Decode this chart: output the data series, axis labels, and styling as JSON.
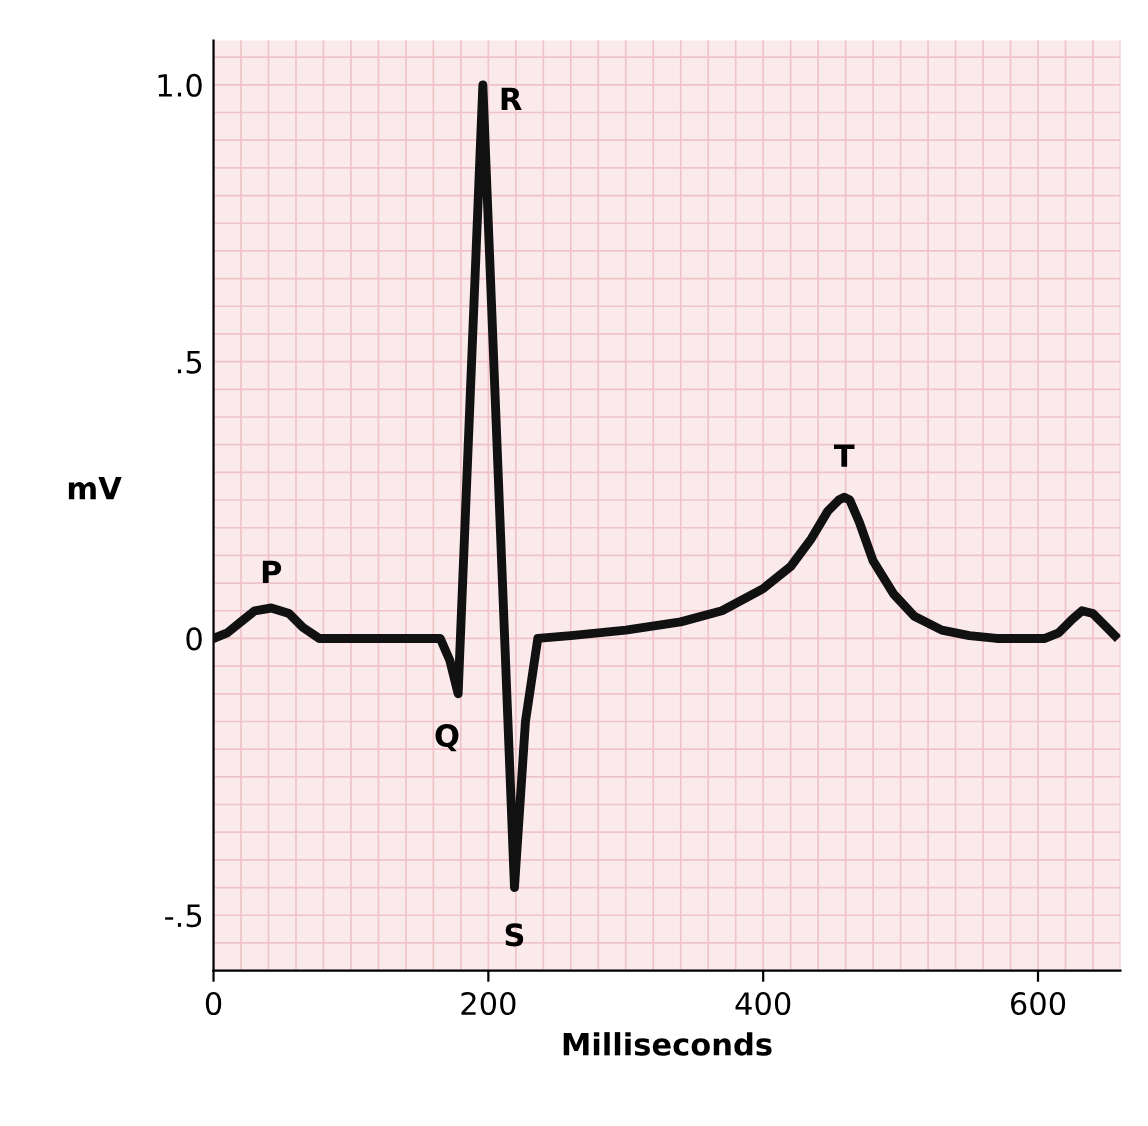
{
  "chart_data": {
    "type": "line",
    "xlabel": "Milliseconds",
    "ylabel": "mV",
    "x": [
      0,
      10,
      20,
      30,
      42,
      55,
      65,
      77,
      100,
      150,
      165,
      172,
      178,
      196,
      219,
      227,
      236,
      260,
      300,
      340,
      370,
      400,
      420,
      435,
      447,
      455,
      459,
      463,
      470,
      480,
      495,
      510,
      530,
      550,
      570,
      590,
      605,
      615,
      625,
      632,
      640,
      650,
      656
    ],
    "series": [
      {
        "color": "#111111",
        "values": [
          0,
          0.01,
          0.03,
          0.05,
          0.055,
          0.045,
          0.02,
          0,
          0,
          0,
          0,
          -0.04,
          -0.1,
          1.0,
          -0.45,
          -0.15,
          0,
          0.005,
          0.015,
          0.03,
          0.05,
          0.09,
          0.13,
          0.18,
          0.23,
          0.25,
          0.255,
          0.25,
          0.21,
          0.14,
          0.08,
          0.04,
          0.015,
          0.005,
          0,
          0,
          0,
          0.01,
          0.035,
          0.05,
          0.045,
          0.02,
          0.005
        ]
      }
    ],
    "xlim": [
      0,
      660
    ],
    "ylim": [
      -0.6,
      1.08
    ],
    "xticks": [
      0,
      200,
      400,
      600
    ],
    "yticks": [
      {
        "value": -0.5,
        "label": "-.5"
      },
      0,
      {
        "value": 0.5,
        "label": ".5"
      },
      {
        "value": 1.0,
        "label": "1.0"
      }
    ],
    "grid": true,
    "marker": "none",
    "line_style": "solid",
    "annotations": [
      {
        "text": "P",
        "x": 42,
        "y": 0.055
      },
      {
        "text": "Q",
        "x": 178,
        "y": -0.1
      },
      {
        "text": "R",
        "x": 196,
        "y": 1.0
      },
      {
        "text": "S",
        "x": 219,
        "y": -0.45
      },
      {
        "text": "T",
        "x": 459,
        "y": 0.255
      }
    ]
  }
}
